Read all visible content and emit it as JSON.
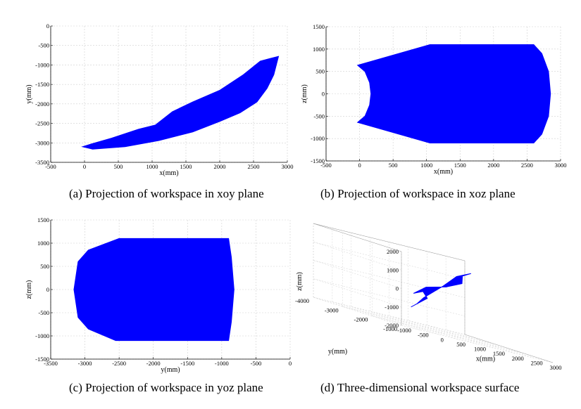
{
  "captions": {
    "a": "(a) Projection of workspace in xoy plane",
    "b": "(b) Projection of workspace in xoz plane",
    "c": "(c) Projection of workspace in yoz plane",
    "d": "(d) Three-dimensional workspace surface"
  },
  "colors": {
    "fill": "#0000ff",
    "grid": "#d0d0d0",
    "axis": "#000000"
  },
  "chart_data": [
    {
      "id": "a",
      "type": "area",
      "xlabel": "x(mm)",
      "ylabel": "y(mm)",
      "xlim": [
        -500,
        3000
      ],
      "ylim": [
        -3500,
        0
      ],
      "xticks": [
        -500,
        0,
        500,
        1000,
        1500,
        2000,
        2500,
        3000
      ],
      "yticks": [
        -3500,
        -3000,
        -2500,
        -2000,
        -1500,
        -1000,
        -500,
        0
      ],
      "grid": true,
      "region": [
        [
          -30,
          -3100
        ],
        [
          120,
          -3160
        ],
        [
          600,
          -3100
        ],
        [
          1100,
          -2940
        ],
        [
          1600,
          -2720
        ],
        [
          2000,
          -2450
        ],
        [
          2300,
          -2230
        ],
        [
          2550,
          -1950
        ],
        [
          2700,
          -1600
        ],
        [
          2800,
          -1250
        ],
        [
          2870,
          -780
        ],
        [
          2600,
          -900
        ],
        [
          2350,
          -1250
        ],
        [
          2000,
          -1650
        ],
        [
          1600,
          -1950
        ],
        [
          1300,
          -2200
        ],
        [
          1050,
          -2540
        ],
        [
          800,
          -2650
        ],
        [
          400,
          -2880
        ],
        [
          100,
          -3030
        ]
      ]
    },
    {
      "id": "b",
      "type": "area",
      "xlabel": "x(mm)",
      "ylabel": "z(mm)",
      "xlim": [
        -500,
        3000
      ],
      "ylim": [
        -1500,
        1500
      ],
      "xticks": [
        -500,
        0,
        500,
        1000,
        1500,
        2000,
        2500,
        3000
      ],
      "yticks": [
        -1500,
        -1000,
        -500,
        0,
        500,
        1000,
        1500
      ],
      "grid": true,
      "region": [
        [
          -30,
          640
        ],
        [
          1050,
          1100
        ],
        [
          2600,
          1100
        ],
        [
          2720,
          900
        ],
        [
          2820,
          500
        ],
        [
          2850,
          0
        ],
        [
          2820,
          -500
        ],
        [
          2720,
          -900
        ],
        [
          2600,
          -1100
        ],
        [
          1050,
          -1100
        ],
        [
          -30,
          -640
        ],
        [
          80,
          -500
        ],
        [
          150,
          -250
        ],
        [
          170,
          0
        ],
        [
          150,
          250
        ],
        [
          80,
          500
        ]
      ]
    },
    {
      "id": "c",
      "type": "area",
      "xlabel": "y(mm)",
      "ylabel": "z(mm)",
      "xlim": [
        -3500,
        0
      ],
      "ylim": [
        -1500,
        1500
      ],
      "xticks": [
        -3500,
        -3000,
        -2500,
        -2000,
        -1500,
        -1000,
        -500,
        0
      ],
      "yticks": [
        -1500,
        -1000,
        -500,
        0,
        500,
        1000,
        1500
      ],
      "grid": true,
      "region": [
        [
          -2500,
          1100
        ],
        [
          -900,
          1100
        ],
        [
          -860,
          700
        ],
        [
          -820,
          0
        ],
        [
          -860,
          -700
        ],
        [
          -900,
          -1100
        ],
        [
          -2550,
          -1100
        ],
        [
          -2950,
          -850
        ],
        [
          -3100,
          -600
        ],
        [
          -3160,
          0
        ],
        [
          -3100,
          600
        ],
        [
          -2950,
          850
        ]
      ]
    },
    {
      "id": "d",
      "type": "surface",
      "xlabel": "x(mm)",
      "ylabel": "y(mm)",
      "zlabel": "z(mm)",
      "xticks": [
        -1000,
        -500,
        0,
        500,
        1000,
        1500,
        2000,
        2500,
        3000
      ],
      "yticks": [
        -4000,
        -3000,
        -2000,
        -1000
      ],
      "zticks": [
        -2000,
        -1000,
        0,
        1000,
        2000
      ],
      "grid": true
    }
  ]
}
